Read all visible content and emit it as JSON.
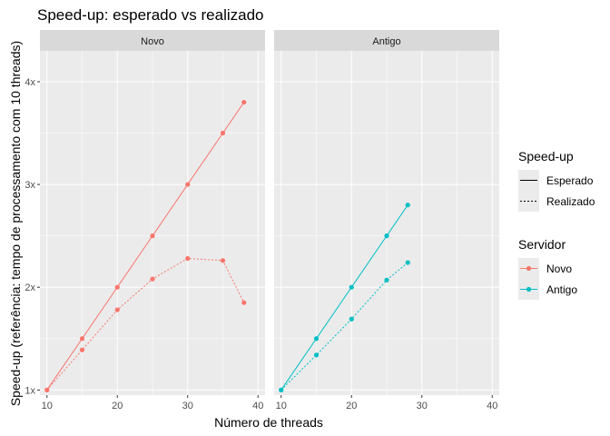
{
  "chart_data": {
    "type": "line",
    "title": "Speed-up: esperado vs realizado",
    "xlabel": "Número de threads",
    "ylabel": "Speed-up (referência: tempo de processamento com 10 threads)",
    "xlim": [
      9,
      41
    ],
    "ylim": [
      0.95,
      4.3
    ],
    "x_ticks": [
      10,
      20,
      30,
      40
    ],
    "x_tick_labels": [
      "10",
      "20",
      "30",
      "40"
    ],
    "y_ticks": [
      1,
      2,
      3,
      4
    ],
    "y_tick_labels": [
      "1x",
      "2x",
      "3x",
      "4x"
    ],
    "grid": true,
    "facets": [
      {
        "strip": "Novo",
        "color_group": "Novo",
        "series": [
          {
            "linetype": "Esperado",
            "x": [
              10,
              15,
              20,
              25,
              30,
              35,
              38
            ],
            "y": [
              1.0,
              1.5,
              2.0,
              2.5,
              3.0,
              3.5,
              3.8
            ]
          },
          {
            "linetype": "Realizado",
            "x": [
              10,
              15,
              20,
              25,
              30,
              35,
              38
            ],
            "y": [
              1.0,
              1.39,
              1.78,
              2.08,
              2.28,
              2.26,
              1.85
            ]
          }
        ]
      },
      {
        "strip": "Antigo",
        "color_group": "Antigo",
        "series": [
          {
            "linetype": "Esperado",
            "x": [
              10,
              15,
              20,
              25,
              28
            ],
            "y": [
              1.0,
              1.5,
              2.0,
              2.5,
              2.8
            ]
          },
          {
            "linetype": "Realizado",
            "x": [
              10,
              15,
              20,
              25,
              28
            ],
            "y": [
              1.0,
              1.34,
              1.69,
              2.07,
              2.24
            ]
          }
        ]
      }
    ],
    "legends": [
      {
        "title": "Speed-up",
        "entries": [
          {
            "label": "Esperado",
            "linetype": "solid"
          },
          {
            "label": "Realizado",
            "linetype": "dotted"
          }
        ]
      },
      {
        "title": "Servidor",
        "entries": [
          {
            "label": "Novo",
            "color": "#F8766D"
          },
          {
            "label": "Antigo",
            "color": "#00BFC4"
          }
        ]
      }
    ],
    "legend_position": "right"
  },
  "colors": {
    "Novo": "#F8766D",
    "Antigo": "#00BFC4",
    "panel_background": "#EBEBEB",
    "strip_background": "#D9D9D9",
    "grid": "#FFFFFF"
  }
}
